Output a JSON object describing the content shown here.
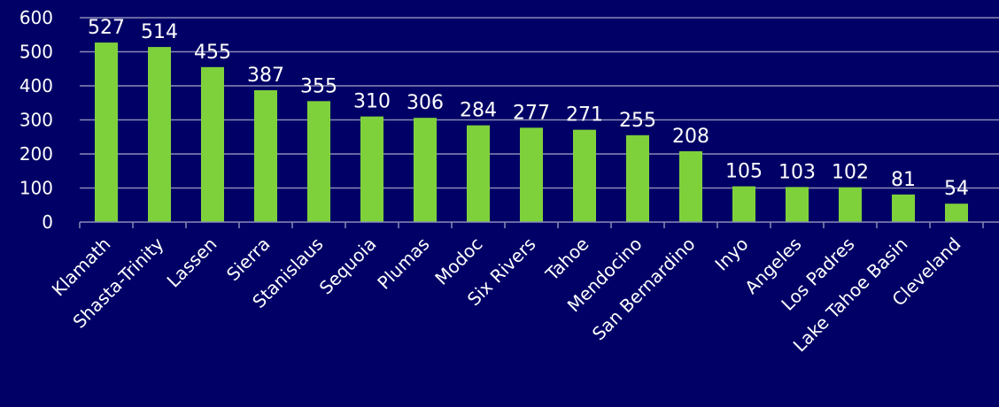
{
  "colors": {
    "background": "#000066",
    "bar": "#7fd13b",
    "text": "#ffffff",
    "grid": "#8a8ab8"
  },
  "chart_data": {
    "type": "bar",
    "categories": [
      "Klamath",
      "Shasta-Trinity",
      "Lassen",
      "Sierra",
      "Stanislaus",
      "Sequoia",
      "Plumas",
      "Modoc",
      "Six Rivers",
      "Tahoe",
      "Mendocino",
      "San Bernardino",
      "Inyo",
      "Angeles",
      "Los Padres",
      "Lake Tahoe Basin",
      "Cleveland"
    ],
    "values": [
      527,
      514,
      455,
      387,
      355,
      310,
      306,
      284,
      277,
      271,
      255,
      208,
      105,
      103,
      102,
      81,
      54
    ],
    "data_labels": [
      "527",
      "514",
      "455",
      "387",
      "355",
      "310",
      "306",
      "284",
      "277",
      "271",
      "255",
      "208",
      "105",
      "103",
      "102",
      "81",
      "54"
    ],
    "yticks": [
      "0",
      "100",
      "200",
      "300",
      "400",
      "500",
      "600"
    ],
    "ylim": [
      0,
      600
    ],
    "grid": true,
    "legend": "none",
    "title": "",
    "xlabel": "",
    "ylabel": ""
  }
}
